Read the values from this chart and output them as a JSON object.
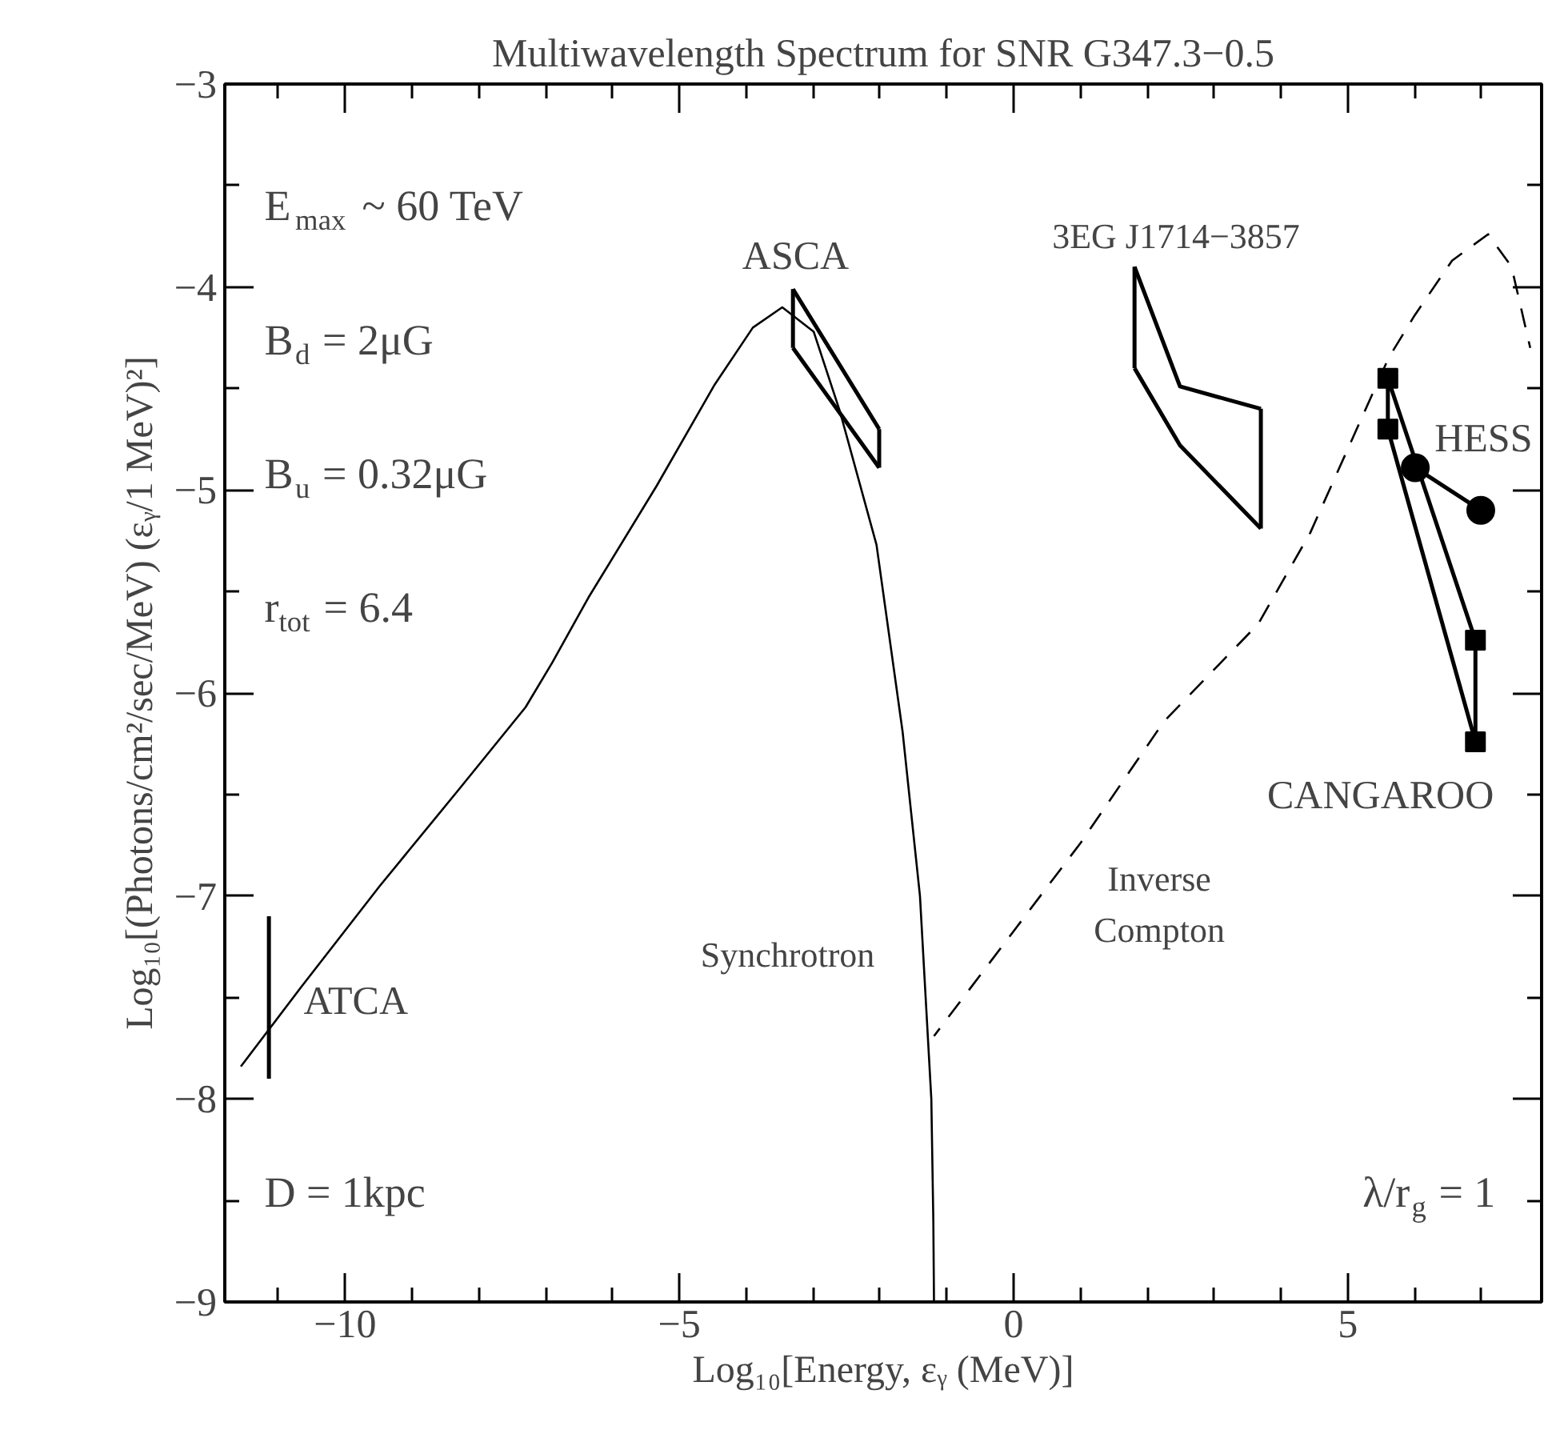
{
  "chart_data": {
    "type": "line",
    "title": "Multiwavelength Spectrum for SNR G347.3−0.5",
    "xlabel": "Log₁₀[Energy, εᵧ (MeV)]",
    "ylabel": "Log₁₀[(Photons/cm²/sec/MeV) (εᵧ/1 MeV)²]",
    "xlim": [
      -11.8,
      7.9
    ],
    "ylim": [
      -9,
      -3
    ],
    "xticks": [
      {
        "value": -11,
        "label": null
      },
      {
        "value": -10,
        "label": "−10"
      },
      {
        "value": -9,
        "label": null
      },
      {
        "value": -8,
        "label": null
      },
      {
        "value": -7,
        "label": null
      },
      {
        "value": -6,
        "label": null
      },
      {
        "value": -5,
        "label": "−5"
      },
      {
        "value": -4,
        "label": null
      },
      {
        "value": -3,
        "label": null
      },
      {
        "value": -2,
        "label": null
      },
      {
        "value": -1,
        "label": null
      },
      {
        "value": 0,
        "label": "0"
      },
      {
        "value": 1,
        "label": null
      },
      {
        "value": 2,
        "label": null
      },
      {
        "value": 3,
        "label": null
      },
      {
        "value": 4,
        "label": null
      },
      {
        "value": 5,
        "label": "5"
      },
      {
        "value": 6,
        "label": null
      },
      {
        "value": 7,
        "label": null
      }
    ],
    "yticks": [
      {
        "value": -9,
        "label": "−9"
      },
      {
        "value": -8.5,
        "label": null
      },
      {
        "value": -8,
        "label": "−8"
      },
      {
        "value": -7.5,
        "label": null
      },
      {
        "value": -7,
        "label": "−7"
      },
      {
        "value": -6.5,
        "label": null
      },
      {
        "value": -6,
        "label": "−6"
      },
      {
        "value": -5.5,
        "label": null
      },
      {
        "value": -5,
        "label": "−5"
      },
      {
        "value": -4.5,
        "label": null
      },
      {
        "value": -4,
        "label": "−4"
      },
      {
        "value": -3.5,
        "label": null
      },
      {
        "value": -3,
        "label": "−3"
      }
    ],
    "series": [
      {
        "name": "Synchrotron",
        "color": "#000000",
        "line_style": "solid",
        "marker": "none",
        "x": [
          -11.56,
          -10.66,
          -9.48,
          -8.31,
          -7.3,
          -6.9,
          -6.36,
          -5.34,
          -4.47,
          -3.9,
          -3.46,
          -2.99,
          -2.6,
          -2.05,
          -1.66,
          -1.4,
          -1.23,
          -1.2,
          -1.19
        ],
        "values": [
          -7.84,
          -7.45,
          -6.95,
          -6.48,
          -6.07,
          -5.85,
          -5.53,
          -4.98,
          -4.48,
          -4.2,
          -4.1,
          -4.22,
          -4.61,
          -5.27,
          -6.19,
          -7.0,
          -8.0,
          -8.6,
          -9.0
        ]
      },
      {
        "name": "Inverse\nCompton",
        "color": "#000000",
        "line_style": "dashed",
        "marker": "none",
        "x": [
          -1.19,
          1.0,
          2.25,
          3.66,
          4.44,
          5.61,
          6.0,
          6.56,
          7.1,
          7.45,
          7.73
        ],
        "values": [
          -7.69,
          -6.74,
          -6.14,
          -5.66,
          -5.21,
          -4.35,
          -4.14,
          -3.87,
          -3.74,
          -3.9,
          -4.3
        ]
      },
      {
        "name": "ASCA",
        "color": "#000000",
        "line_style": "solid",
        "marker": "none",
        "x": [
          -3.3,
          -2.01
        ],
        "values": [
          -4.01,
          -4.7
        ]
      },
      {
        "color": "#000000",
        "line_style": "solid",
        "marker": "none",
        "x": [
          -3.3,
          -2.01
        ],
        "values": [
          -4.3,
          -4.89
        ],
        "errors": [
          [
            -4.3,
            -4.01
          ],
          [
            -4.89,
            -4.7
          ]
        ]
      },
      {
        "name": "3EG J1714−3857",
        "color": "#000000",
        "line_style": "solid",
        "marker": "none",
        "x": [
          1.81,
          2.49,
          3.7
        ],
        "values": [
          -3.9,
          -4.49,
          -4.6
        ]
      },
      {
        "color": "#000000",
        "line_style": "solid",
        "marker": "none",
        "x": [
          1.81,
          2.49,
          3.7
        ],
        "values": [
          -4.4,
          -4.78,
          -5.19
        ],
        "errors": [
          [
            -4.4,
            -3.9
          ],
          null,
          [
            -5.19,
            -4.6
          ]
        ]
      },
      {
        "name": "HESS",
        "color": "#000000",
        "line_style": "solid",
        "marker": "circle",
        "x": [
          6.01,
          6.99
        ],
        "values": [
          -4.89,
          -5.1
        ]
      },
      {
        "name": "CANGAROO",
        "color": "#000000",
        "line_style": "solid",
        "marker": "square",
        "x": [
          5.6,
          5.6,
          6.91,
          6.91
        ],
        "values": [
          -4.7,
          -4.45,
          -5.74,
          -6.24
        ]
      },
      {
        "color": "#000000",
        "line_style": "solid",
        "marker": "none",
        "x": [
          5.6,
          6.91
        ],
        "values": [
          -4.7,
          -6.24
        ]
      },
      {
        "name": "ATCA",
        "color": "#000000",
        "line_style": "solid",
        "marker": "none",
        "x": [
          -11.14,
          -11.14
        ],
        "values": [
          -7.9,
          -7.1
        ]
      }
    ],
    "annotations": [
      "E$_{max}$ ~ 60 TeV",
      "B$_{d}$ = 2μG",
      "B$_{u}$ = 0.32μG",
      "r$_{tot}$ = 6.4",
      "D = 1kpc",
      "λ/r$_{g}$ = 1"
    ]
  }
}
